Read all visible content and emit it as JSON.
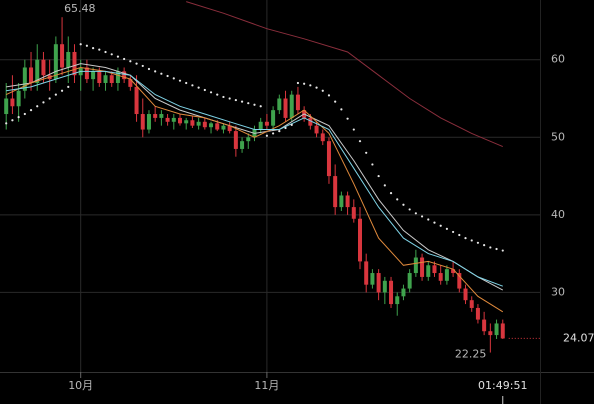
{
  "chart_data": {
    "type": "candlestick",
    "x": [
      0,
      1,
      2,
      3,
      4,
      5,
      6,
      7,
      8,
      9,
      10,
      11,
      12,
      13,
      14,
      15,
      16,
      17,
      18,
      19,
      20,
      21,
      22,
      23,
      24,
      25,
      26,
      27,
      28,
      29,
      30,
      31,
      32,
      33,
      34,
      35,
      36,
      37,
      38,
      39,
      40,
      41,
      42,
      43,
      44,
      45,
      46,
      47,
      48,
      49,
      50,
      51,
      52,
      53,
      54,
      55,
      56,
      57,
      58,
      59,
      60,
      61,
      62,
      63,
      64,
      65,
      66,
      67,
      68,
      69,
      70,
      71,
      72,
      73,
      74,
      75,
      76,
      77,
      78,
      79,
      80
    ],
    "open": [
      53,
      55,
      54,
      56,
      59,
      57,
      60,
      58,
      57.5,
      62,
      59,
      61,
      58,
      59,
      57.5,
      58.5,
      57,
      58,
      57,
      58.5,
      57.5,
      56.5,
      53,
      51,
      53,
      52.5,
      52.5,
      52,
      52.5,
      51.8,
      52.2,
      51.5,
      52,
      51.3,
      51.8,
      51,
      51.5,
      50.8,
      48.5,
      49.5,
      50,
      51,
      52,
      51.5,
      53.5,
      55,
      52.5,
      55.5,
      53.5,
      52.5,
      51.5,
      50.5,
      49.5,
      45,
      41,
      42.5,
      41,
      39.5,
      34,
      31,
      32.5,
      30,
      31.5,
      28.5,
      29.5,
      30.5,
      32.5,
      34.5,
      32,
      33.5,
      32.5,
      31.5,
      33,
      32.5,
      30.5,
      29,
      28,
      26.5,
      25,
      24.5,
      26
    ],
    "high": [
      57,
      58,
      57,
      60,
      61,
      62,
      61,
      60,
      63,
      65.48,
      63,
      62,
      60,
      60,
      59,
      59,
      58.5,
      58.5,
      59,
      59,
      58,
      58,
      55,
      53.5,
      54,
      53.5,
      53,
      53,
      53,
      52.5,
      52.8,
      52.5,
      52.5,
      52,
      52.2,
      51.8,
      52,
      51.5,
      50,
      50.5,
      51.5,
      52.5,
      53,
      54,
      55.5,
      56,
      56,
      56.5,
      54,
      53,
      52,
      51,
      50,
      46.5,
      43,
      43,
      42,
      41,
      35,
      33,
      33,
      32,
      32,
      30,
      31,
      33,
      35.5,
      35,
      34,
      34,
      33.5,
      33.5,
      34,
      33,
      31,
      29.5,
      28.5,
      27.5,
      26,
      26.5,
      26.5
    ],
    "low": [
      51,
      53,
      52,
      55,
      56,
      56,
      57,
      56,
      57,
      58,
      57,
      57,
      56,
      57,
      56,
      56.5,
      56,
      56.5,
      56,
      57,
      56,
      52,
      50,
      50.5,
      52,
      51.5,
      51.5,
      51,
      51.5,
      51,
      51.2,
      51,
      51,
      50.5,
      50.8,
      50.5,
      50.5,
      47.5,
      48,
      48.5,
      49.5,
      50.5,
      51,
      51,
      53,
      52,
      52,
      53,
      52,
      51,
      50,
      49,
      44,
      40,
      40.5,
      40,
      39,
      33,
      30,
      30.5,
      29,
      28.5,
      28,
      27,
      29,
      30,
      32,
      31.5,
      31.5,
      32,
      31,
      31,
      32,
      30,
      28.5,
      27.5,
      26,
      24.5,
      22.25,
      24,
      24
    ],
    "close": [
      55,
      54,
      56,
      59,
      57,
      60,
      58,
      57.5,
      62,
      59,
      61,
      58,
      59,
      57.5,
      58.5,
      57,
      58,
      57,
      58.5,
      57.5,
      56.5,
      53,
      51,
      53,
      52.5,
      53,
      52,
      52.5,
      51.8,
      52.2,
      51.5,
      52,
      51.3,
      51.8,
      51,
      51.5,
      50.8,
      48.5,
      49.5,
      50,
      51,
      52,
      51.5,
      53.5,
      55,
      52.5,
      55.5,
      53.5,
      52.5,
      51.5,
      50.5,
      49.5,
      45,
      41,
      42.5,
      41,
      39.5,
      34,
      31,
      32.5,
      30,
      31.5,
      28.5,
      29.5,
      30.5,
      32.5,
      34.5,
      32,
      33.5,
      32.5,
      31.5,
      33,
      32.5,
      30.5,
      29,
      28,
      26.5,
      25,
      24.5,
      26,
      24.07
    ],
    "up_color": "#3fa34d",
    "down_color": "#d9363e",
    "lines": [
      {
        "color": "#c9c9c9",
        "x": [
          0,
          4,
          8,
          12,
          16,
          20,
          24,
          28,
          32,
          36,
          40,
          44,
          48,
          52,
          56,
          60,
          64,
          68,
          72,
          76,
          80
        ],
        "values": [
          56.5,
          57,
          58.5,
          59.5,
          59,
          58,
          55,
          53.5,
          52.5,
          51.5,
          50.5,
          51,
          53,
          51.5,
          47,
          42,
          38,
          35.5,
          34,
          32,
          30.3
        ]
      },
      {
        "color": "#e08a3c",
        "x": [
          0,
          4,
          8,
          12,
          16,
          20,
          24,
          28,
          32,
          36,
          40,
          44,
          48,
          52,
          56,
          60,
          64,
          68,
          72,
          76,
          80
        ],
        "values": [
          55.5,
          57,
          58,
          59,
          58.5,
          57.5,
          54,
          53,
          52.5,
          51.5,
          50,
          51.5,
          53.5,
          50.5,
          44,
          37,
          33.5,
          34,
          33,
          29.5,
          27.5
        ]
      },
      {
        "color": "#7fd3e6",
        "x": [
          0,
          4,
          8,
          12,
          16,
          20,
          24,
          28,
          32,
          36,
          40,
          44,
          48,
          52,
          56,
          60,
          64,
          68,
          72,
          76,
          80
        ],
        "values": [
          56,
          56.5,
          57.5,
          58.5,
          58.5,
          58,
          55.5,
          54,
          53,
          52,
          51,
          51,
          52.5,
          51,
          46,
          41,
          37,
          35,
          34,
          32,
          30.8
        ]
      },
      {
        "color": "#8a2e3c",
        "x": [
          29,
          35,
          42,
          48,
          55,
          60,
          65,
          70,
          75,
          80
        ],
        "values": [
          67.5,
          66,
          64,
          62.7,
          61,
          58,
          55,
          52.5,
          50.5,
          48.8
        ]
      }
    ],
    "sar": {
      "color": "#e6e6e6",
      "values": [
        51.8,
        52.2,
        52.6,
        53,
        53.5,
        54,
        54.5,
        55,
        55.5,
        56,
        56.5,
        null,
        62,
        61.8,
        61.5,
        61.3,
        61,
        60.7,
        60.4,
        60.1,
        59.8,
        59.5,
        59.2,
        58.8,
        58.5,
        58.2,
        57.9,
        57.6,
        57.3,
        57,
        56.7,
        56.4,
        56.1,
        55.8,
        55.5,
        55.2,
        55,
        54.8,
        54.6,
        54.4,
        54.2,
        54,
        50.2,
        50.5,
        50.8,
        51.2,
        51.6,
        57,
        56.9,
        56.7,
        56.4,
        56,
        55.4,
        54.6,
        53.6,
        52.4,
        51,
        49.5,
        48,
        46.5,
        45,
        43.8,
        42.8,
        42,
        41.3,
        40.7,
        40.2,
        39.8,
        39.4,
        39,
        38.6,
        38.2,
        37.8,
        37.4,
        37,
        36.7,
        36.4,
        36.1,
        35.8,
        35.6,
        35.4
      ]
    },
    "xlim": [
      -1,
      86
    ],
    "xticks": [
      {
        "value": 12,
        "label": "10月"
      },
      {
        "value": 42,
        "label": "11月"
      }
    ],
    "ylim": [
      20,
      67.7
    ],
    "yticks": [
      30,
      40,
      50,
      60
    ],
    "grid": true,
    "countdown": "01:49:51"
  }
}
